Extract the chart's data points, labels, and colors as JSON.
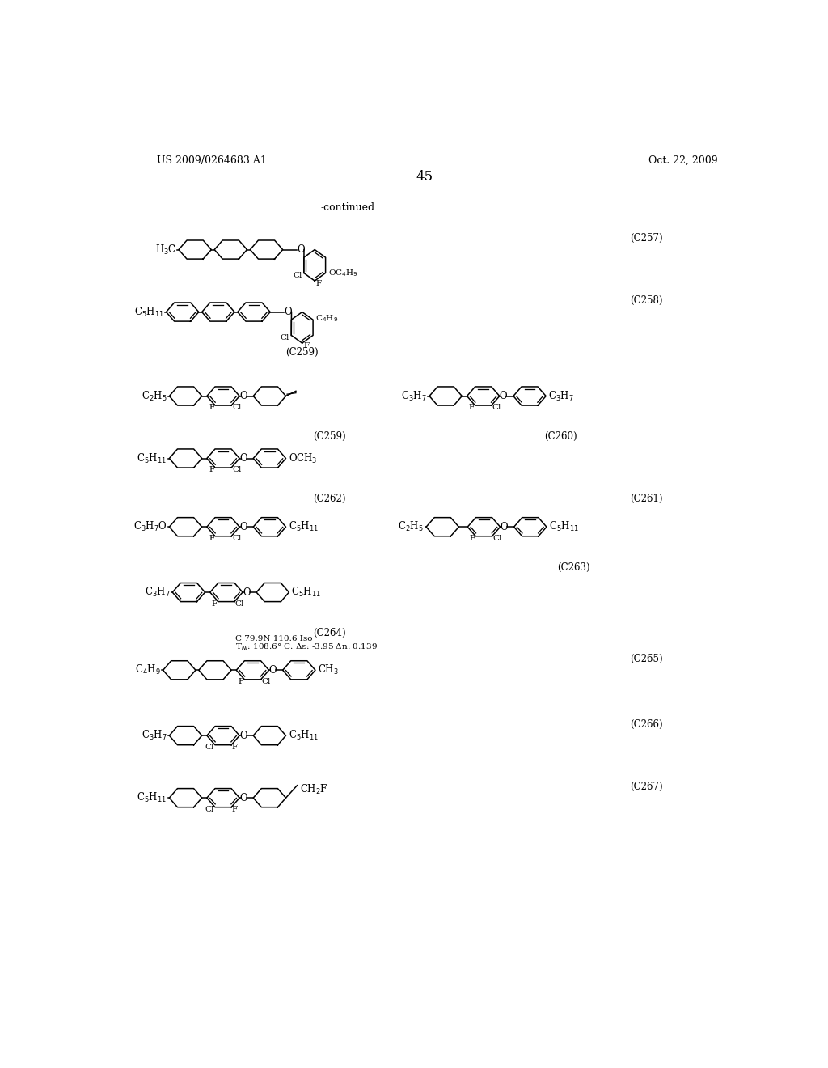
{
  "page_number": "45",
  "patent_number": "US 2009/0264683 A1",
  "patent_date": "Oct. 22, 2009",
  "continued_label": "-continued",
  "background_color": "#ffffff",
  "text_color": "#000000",
  "note_line1": "C 79.9N 110.6 Iso",
  "note_line2": "T_{NI}: 108.6 C. Delta_epsilon: -3.95 Delta_n: 0.139",
  "compound_labels": [
    "(C257)",
    "(C258)",
    "(C259)",
    "(C260)",
    "(C261)",
    "(C262)",
    "(C263)",
    "(C264)",
    "(C265)",
    "(C266)",
    "(C267)"
  ]
}
